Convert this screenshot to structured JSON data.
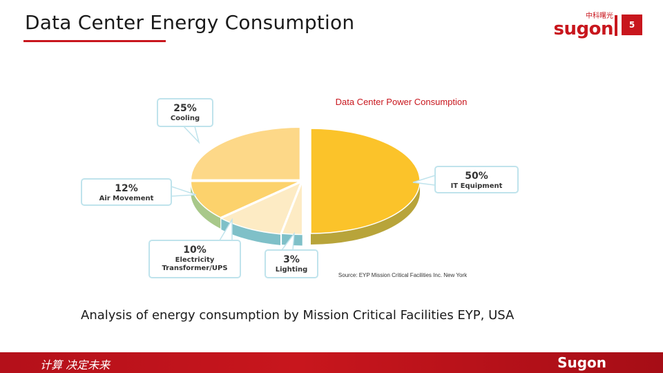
{
  "slide": {
    "title": "Data Center Energy Consumption",
    "page_number": "5",
    "caption": "Analysis of energy consumption by Mission Critical Facilities EYP, USA"
  },
  "brand": {
    "name_cn": "中科曙光",
    "logo_text": "sugon"
  },
  "footer": {
    "slogan": "计算 决定未来",
    "brand": "Sugon"
  },
  "colors": {
    "accent": "#c8161d"
  },
  "chart_data": {
    "type": "pie",
    "title": "Data Center Power Consumption",
    "source": "Source: EYP Mission Critical Facilities Inc. New York",
    "slices": [
      {
        "label": "IT Equipment",
        "value": 50,
        "value_label": "50%",
        "color": "#fbc32a"
      },
      {
        "label": "Lighting",
        "value": 3,
        "value_label": "3%",
        "color": "#fdebc4"
      },
      {
        "label": "Electricity Transformer/UPS",
        "value": 10,
        "value_label": "10%",
        "color": "#fdebc4"
      },
      {
        "label": "Air Movement",
        "value": 12,
        "value_label": "12%",
        "color": "#fcd26c"
      },
      {
        "label": "Cooling",
        "value": 25,
        "value_label": "25%",
        "color": "#fdd888"
      }
    ]
  }
}
